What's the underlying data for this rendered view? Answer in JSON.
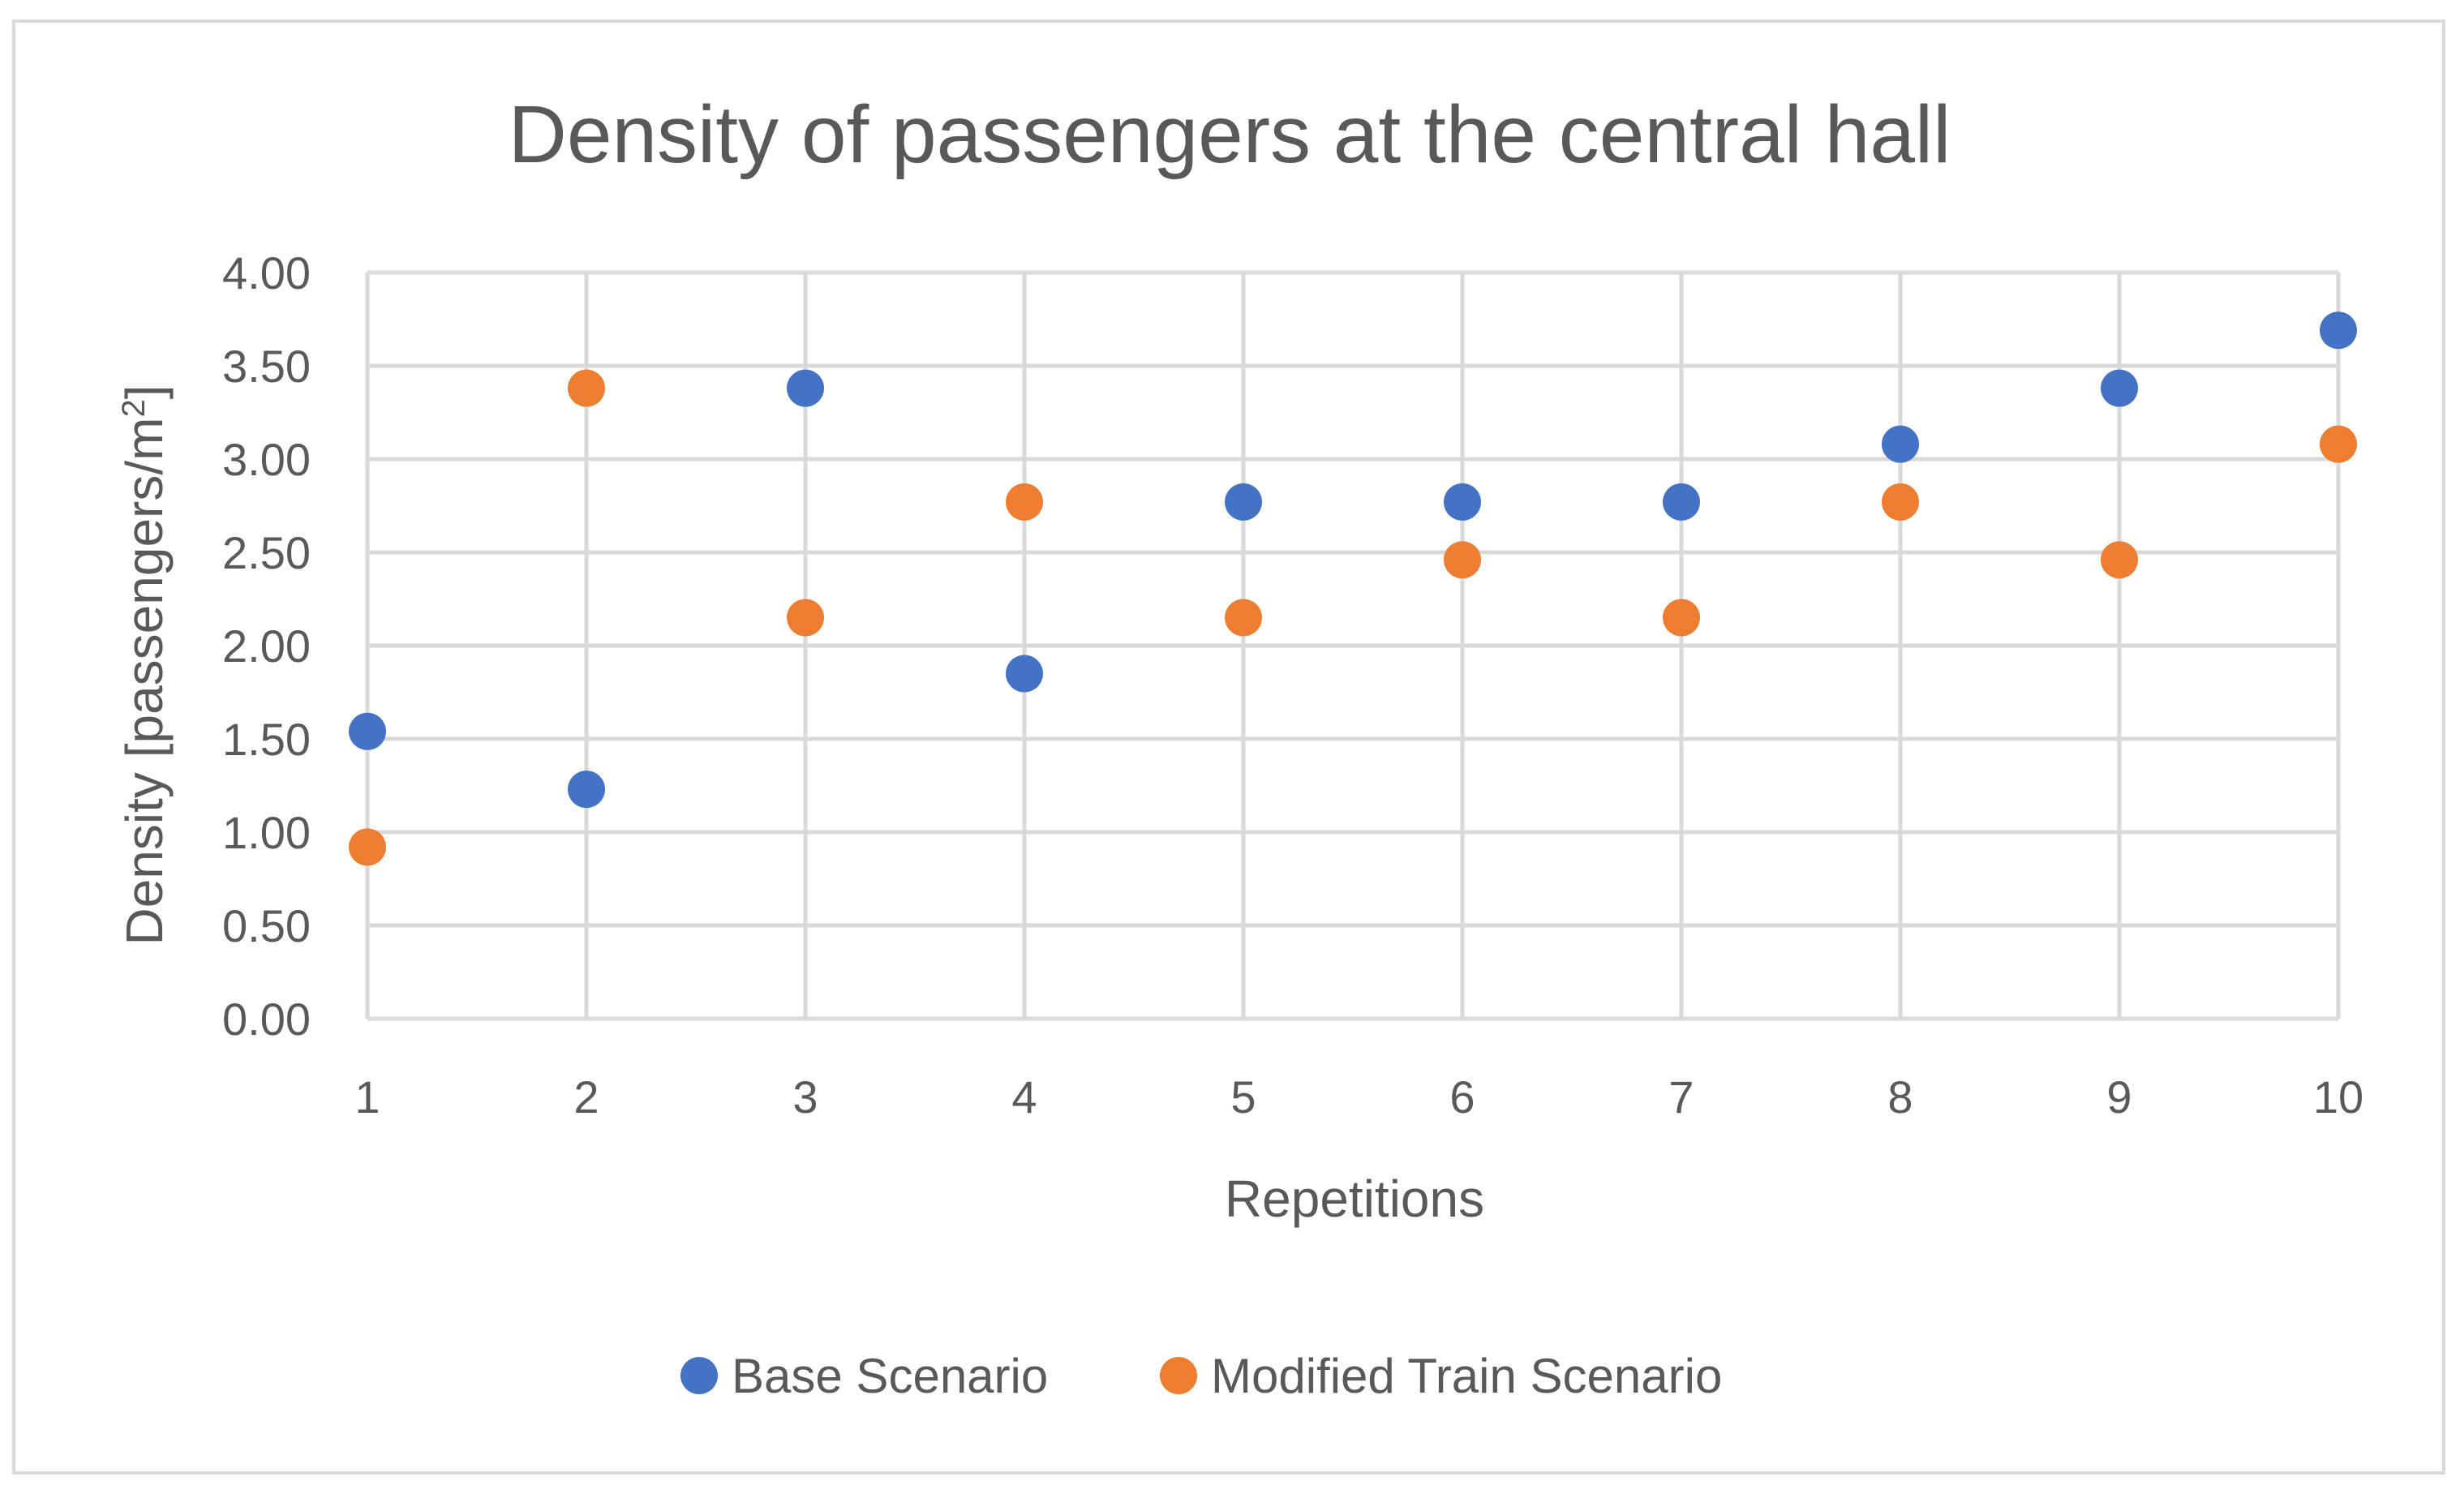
{
  "chart_data": {
    "type": "scatter",
    "title": "Density of passengers at the central hall",
    "xlabel": "Repetitions",
    "ylabel": "Density [passengers/m",
    "ylabel_superscript": "2",
    "ylabel_suffix": "]",
    "x": [
      1,
      2,
      3,
      4,
      5,
      6,
      7,
      8,
      9,
      10
    ],
    "xlim": [
      1,
      10
    ],
    "ylim": [
      0,
      4
    ],
    "x_ticks": [
      "1",
      "2",
      "3",
      "4",
      "5",
      "6",
      "7",
      "8",
      "9",
      "10"
    ],
    "y_ticks": [
      "0.00",
      "0.50",
      "1.00",
      "1.50",
      "2.00",
      "2.50",
      "3.00",
      "3.50",
      "4.00"
    ],
    "grid": true,
    "legend_position": "bottom",
    "series": [
      {
        "name": "Base Scenario",
        "color": "#4472c4",
        "values": [
          1.54,
          1.23,
          3.38,
          1.85,
          2.77,
          2.77,
          2.77,
          3.08,
          3.38,
          3.69
        ]
      },
      {
        "name": "Modified Train Scenario",
        "color": "#ed7d31",
        "values": [
          0.92,
          3.38,
          2.15,
          2.77,
          2.15,
          2.46,
          2.15,
          2.77,
          2.46,
          3.08
        ]
      }
    ]
  }
}
